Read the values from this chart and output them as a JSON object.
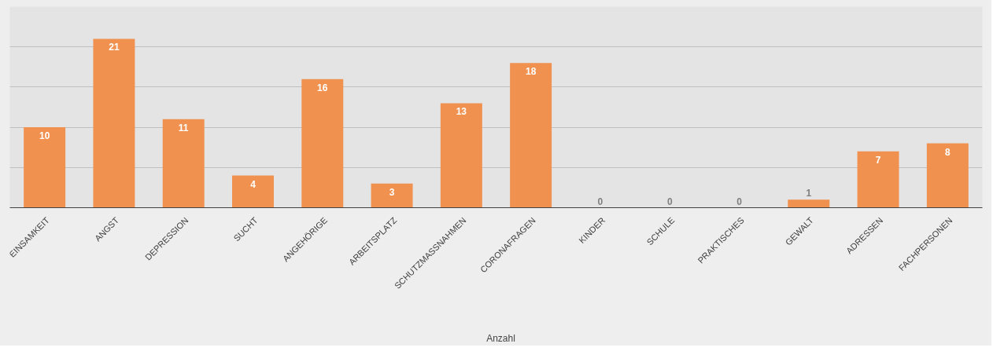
{
  "chart_data": {
    "type": "bar",
    "categories": [
      "EINSAMKEIT",
      "ANGST",
      "DEPRESSION",
      "SUCHT",
      "ANGEHÖRIGE",
      "ARBEITSPLATZ",
      "SCHUTZMASSNAHMEN",
      "CORONAFRAGEN",
      "KINDER",
      "SCHULE",
      "PRAKTISCHES",
      "GEWALT",
      "ADRESSEN",
      "FACHPERSONEN"
    ],
    "series": [
      {
        "name": "Anzahl",
        "color": "#f0914f",
        "values": [
          10,
          21,
          11,
          4,
          16,
          3,
          13,
          18,
          0,
          0,
          0,
          1,
          7,
          8
        ]
      }
    ],
    "ylim": [
      0,
      25
    ],
    "yticks": [
      {
        "value": 5,
        "label": null
      },
      {
        "value": 10,
        "label": null
      },
      {
        "value": 15,
        "label": null
      },
      {
        "value": 20,
        "label": null
      }
    ],
    "grid": "y",
    "tick_labels": "x",
    "data_labels": true,
    "legend": "bottom"
  }
}
